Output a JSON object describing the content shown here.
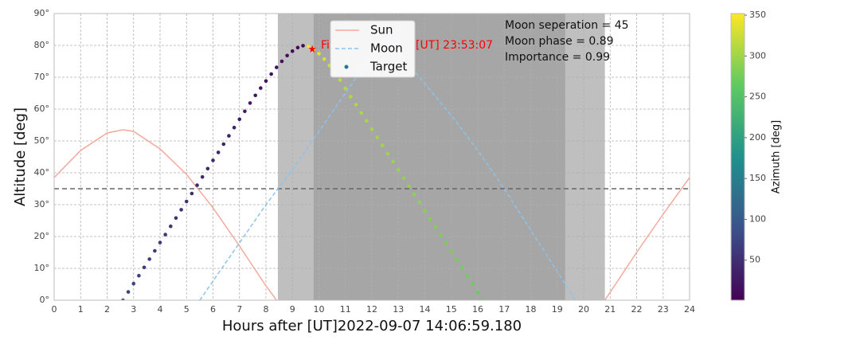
{
  "chart_data": {
    "type": "visibility",
    "xlabel": "Hours after [UT]2022-09-07 14:06:59.180",
    "ylabel": "Altitude [deg]",
    "xlim": [
      0,
      24
    ],
    "ylim": [
      0,
      90
    ],
    "xticks": [
      0,
      1,
      2,
      3,
      4,
      5,
      6,
      7,
      8,
      9,
      10,
      11,
      12,
      13,
      14,
      15,
      16,
      17,
      18,
      19,
      20,
      21,
      22,
      23,
      24
    ],
    "yticks": [
      {
        "value": 0,
        "label": "0°"
      },
      {
        "value": 10,
        "label": "10°"
      },
      {
        "value": 20,
        "label": "20°"
      },
      {
        "value": 30,
        "label": "30°"
      },
      {
        "value": 40,
        "label": "40°"
      },
      {
        "value": 50,
        "label": "50°"
      },
      {
        "value": 60,
        "label": "60°"
      },
      {
        "value": 70,
        "label": "70°"
      },
      {
        "value": 80,
        "label": "80°"
      },
      {
        "value": 90,
        "label": "90°"
      }
    ],
    "grid": true,
    "hline": 35,
    "shaded_regions": [
      {
        "x": [
          8.45,
          20.8
        ],
        "color": "#bfbfbf"
      },
      {
        "x": [
          9.8,
          19.3
        ],
        "color": "#a6a6a6"
      }
    ],
    "series": [
      {
        "name": "Sun",
        "kind": "line",
        "color": "#f4a99a",
        "x": [
          0,
          1,
          2,
          2.6,
          3,
          4,
          5,
          6,
          7,
          8,
          8.4,
          null,
          20.8,
          21,
          22,
          23,
          24
        ],
        "values": [
          38.5,
          47,
          52.5,
          53.5,
          53,
          47.5,
          39.5,
          29,
          17,
          4.5,
          0,
          null,
          0,
          2.5,
          15,
          27,
          38.5
        ]
      },
      {
        "name": "Moon",
        "kind": "dashed",
        "color": "#8cc3ea",
        "x": [
          5.5,
          6,
          7,
          8,
          9,
          10,
          11,
          12,
          12.6,
          13,
          14,
          15,
          16,
          17,
          18,
          19,
          19.7
        ],
        "values": [
          0,
          6,
          18,
          30,
          41,
          53,
          65,
          77,
          84,
          78,
          68,
          58,
          47,
          35,
          22,
          9,
          0
        ]
      },
      {
        "name": "Target",
        "kind": "scatter",
        "color": "#2a788e",
        "x": [
          2.6,
          2.8,
          3.0,
          3.2,
          3.4,
          3.6,
          3.8,
          4.0,
          4.2,
          4.4,
          4.6,
          4.8,
          5.0,
          5.2,
          5.4,
          5.6,
          5.8,
          6.0,
          6.2,
          6.4,
          6.6,
          6.8,
          7.0,
          7.2,
          7.4,
          7.6,
          7.8,
          8.0,
          8.2,
          8.4,
          8.6,
          8.8,
          9.0,
          9.2,
          9.4,
          9.6,
          9.8,
          10.0,
          10.2,
          10.4,
          10.6,
          10.8,
          11.0,
          11.2,
          11.4,
          11.6,
          11.8,
          12.0,
          12.2,
          12.4,
          12.6,
          12.8,
          13.0,
          13.2,
          13.4,
          13.6,
          13.8,
          14.0,
          14.2,
          14.4,
          14.6,
          14.8,
          15.0,
          15.2,
          15.4,
          15.6,
          15.8,
          16.0,
          16.2
        ],
        "values": [
          0.0,
          2.6,
          5.2,
          7.7,
          10.3,
          12.9,
          15.5,
          18.1,
          20.6,
          23.2,
          25.8,
          28.4,
          31.0,
          33.5,
          36.1,
          38.7,
          41.3,
          43.9,
          46.4,
          49.0,
          51.6,
          54.2,
          56.8,
          59.3,
          61.9,
          64.3,
          66.6,
          68.8,
          71.0,
          73.1,
          75.0,
          76.8,
          78.2,
          79.3,
          79.9,
          79.7,
          78.8,
          77.4,
          75.7,
          73.7,
          71.5,
          69.1,
          66.5,
          63.9,
          61.4,
          58.8,
          56.3,
          53.7,
          51.1,
          48.6,
          46.0,
          43.5,
          40.9,
          38.3,
          35.8,
          33.2,
          30.7,
          28.1,
          25.5,
          23.0,
          20.4,
          17.9,
          15.3,
          12.7,
          10.2,
          7.6,
          5.1,
          2.5,
          0.0
        ],
        "azimuth": [
          75,
          73,
          71,
          69,
          67,
          65,
          63,
          61,
          59,
          57,
          55,
          53,
          51,
          49,
          47,
          45,
          43,
          41,
          39,
          37,
          35,
          33,
          31,
          29,
          27,
          25,
          23,
          21,
          19,
          17,
          15,
          13,
          11,
          9,
          7,
          350,
          345,
          338,
          332,
          326,
          320,
          315,
          311,
          309,
          308,
          306,
          305,
          303,
          301,
          300,
          298,
          296,
          295,
          293,
          292,
          290,
          289,
          287,
          285,
          284,
          282,
          280,
          279,
          277,
          276,
          274,
          272,
          271,
          269
        ]
      }
    ],
    "target_marker": {
      "x": 9.75,
      "y": 78.8,
      "color": "#ff0000"
    },
    "target_label": [
      "Fi",
      "[UT] 23:53:07"
    ],
    "annotations": [
      "Moon seperation = 45",
      "Moon phase = 0.89",
      "Importance = 0.99"
    ],
    "colorbar": {
      "label": "Azimuth [deg]",
      "colormap": "viridis",
      "lim": [
        1,
        352
      ],
      "ticks": [
        50,
        100,
        150,
        200,
        250,
        300,
        350
      ]
    }
  }
}
